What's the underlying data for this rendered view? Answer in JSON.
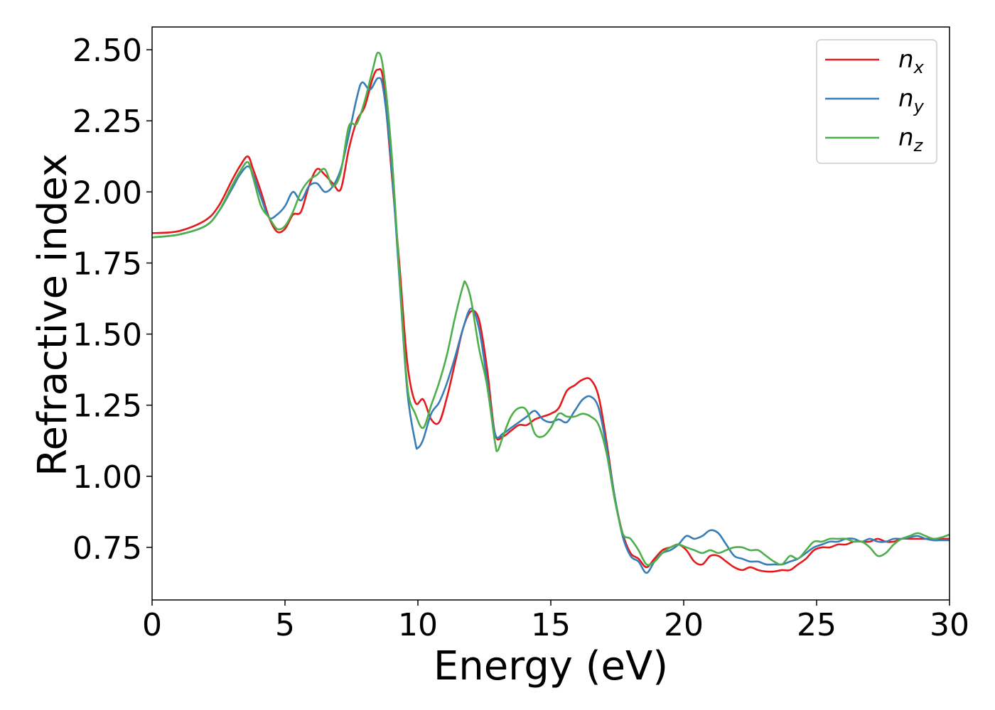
{
  "chart_data": {
    "type": "line",
    "xlabel": "Energy (eV)",
    "ylabel": "Refractive index",
    "xlim": [
      0,
      30
    ],
    "ylim": [
      0.565,
      2.58
    ],
    "xticks": [
      "0",
      "5",
      "10",
      "15",
      "20",
      "25",
      "30"
    ],
    "yticks": [
      "0.75",
      "1.00",
      "1.25",
      "1.50",
      "1.75",
      "2.00",
      "2.25",
      "2.50"
    ],
    "grid": false,
    "legend_position": "top-right",
    "series": [
      {
        "name": "n",
        "subscript": "x",
        "color": "#e41a1c",
        "x": [
          0,
          1,
          2,
          2.5,
          3,
          3.3,
          3.6,
          3.8,
          4.1,
          4.4,
          4.7,
          5.0,
          5.3,
          5.6,
          5.9,
          6.2,
          6.5,
          6.8,
          7.1,
          7.4,
          7.7,
          8.0,
          8.3,
          8.5,
          8.7,
          9.0,
          9.3,
          9.6,
          9.9,
          10.2,
          10.5,
          10.8,
          11.1,
          11.4,
          11.7,
          12.0,
          12.3,
          12.6,
          12.9,
          13.2,
          13.5,
          13.8,
          14.1,
          14.4,
          14.7,
          15.0,
          15.3,
          15.6,
          15.9,
          16.2,
          16.5,
          16.8,
          17.1,
          17.4,
          17.7,
          18.0,
          18.3,
          18.6,
          18.9,
          19.2,
          19.5,
          19.8,
          20.1,
          20.4,
          20.7,
          21.0,
          21.3,
          21.6,
          21.9,
          22.2,
          22.5,
          22.8,
          23.1,
          23.4,
          23.7,
          24.0,
          24.3,
          24.6,
          24.9,
          25.2,
          25.5,
          25.8,
          26.1,
          26.4,
          26.7,
          27.0,
          27.3,
          27.6,
          27.9,
          28.2,
          28.5,
          28.8,
          29.1,
          29.4,
          29.7,
          30.0
        ],
        "y": [
          1.855,
          1.862,
          1.9,
          1.95,
          2.04,
          2.09,
          2.125,
          2.08,
          2.0,
          1.91,
          1.86,
          1.87,
          1.92,
          1.93,
          2.02,
          2.08,
          2.06,
          2.03,
          2.01,
          2.15,
          2.25,
          2.3,
          2.4,
          2.43,
          2.39,
          2.08,
          1.75,
          1.4,
          1.26,
          1.27,
          1.2,
          1.19,
          1.28,
          1.4,
          1.52,
          1.58,
          1.55,
          1.38,
          1.15,
          1.14,
          1.16,
          1.18,
          1.18,
          1.2,
          1.21,
          1.22,
          1.24,
          1.3,
          1.32,
          1.34,
          1.34,
          1.28,
          1.12,
          0.93,
          0.8,
          0.73,
          0.71,
          0.68,
          0.71,
          0.74,
          0.75,
          0.76,
          0.74,
          0.7,
          0.69,
          0.72,
          0.72,
          0.7,
          0.68,
          0.67,
          0.68,
          0.67,
          0.665,
          0.665,
          0.67,
          0.67,
          0.69,
          0.71,
          0.74,
          0.75,
          0.75,
          0.76,
          0.76,
          0.77,
          0.77,
          0.77,
          0.78,
          0.77,
          0.77,
          0.78,
          0.78,
          0.78,
          0.78,
          0.78,
          0.78,
          0.78
        ]
      },
      {
        "name": "n",
        "subscript": "y",
        "color": "#377eb8",
        "x": [
          0,
          1,
          2,
          2.5,
          3,
          3.3,
          3.6,
          3.8,
          4.1,
          4.4,
          4.7,
          5.0,
          5.3,
          5.6,
          5.9,
          6.2,
          6.5,
          6.8,
          7.1,
          7.4,
          7.7,
          7.9,
          8.2,
          8.5,
          8.7,
          9.0,
          9.3,
          9.6,
          9.9,
          10.0,
          10.2,
          10.5,
          10.8,
          11.1,
          11.4,
          11.7,
          12.0,
          12.3,
          12.6,
          12.9,
          13.2,
          13.5,
          13.8,
          14.1,
          14.4,
          14.7,
          15.0,
          15.3,
          15.6,
          15.9,
          16.2,
          16.5,
          16.8,
          17.1,
          17.4,
          17.7,
          18.0,
          18.3,
          18.6,
          18.9,
          19.2,
          19.5,
          19.8,
          20.1,
          20.4,
          20.7,
          21.0,
          21.3,
          21.6,
          21.9,
          22.2,
          22.5,
          22.8,
          23.1,
          23.4,
          23.7,
          24.0,
          24.3,
          24.6,
          24.9,
          25.2,
          25.5,
          25.8,
          26.1,
          26.4,
          26.7,
          27.0,
          27.3,
          27.6,
          27.9,
          28.2,
          28.5,
          28.8,
          29.1,
          29.4,
          29.7,
          30.0
        ],
        "y": [
          1.84,
          1.85,
          1.88,
          1.93,
          2.01,
          2.06,
          2.09,
          2.06,
          1.98,
          1.91,
          1.92,
          1.95,
          2.0,
          1.97,
          2.02,
          2.03,
          2.0,
          2.02,
          2.08,
          2.2,
          2.33,
          2.385,
          2.36,
          2.4,
          2.36,
          2.1,
          1.7,
          1.3,
          1.12,
          1.1,
          1.13,
          1.22,
          1.26,
          1.33,
          1.42,
          1.52,
          1.59,
          1.52,
          1.34,
          1.15,
          1.15,
          1.17,
          1.19,
          1.21,
          1.23,
          1.2,
          1.19,
          1.2,
          1.19,
          1.23,
          1.27,
          1.28,
          1.24,
          1.1,
          0.93,
          0.79,
          0.72,
          0.7,
          0.66,
          0.7,
          0.73,
          0.74,
          0.76,
          0.79,
          0.78,
          0.79,
          0.81,
          0.8,
          0.76,
          0.72,
          0.71,
          0.7,
          0.7,
          0.69,
          0.69,
          0.69,
          0.7,
          0.71,
          0.73,
          0.75,
          0.76,
          0.77,
          0.77,
          0.78,
          0.78,
          0.77,
          0.78,
          0.77,
          0.77,
          0.78,
          0.78,
          0.785,
          0.79,
          0.78,
          0.775,
          0.775,
          0.775
        ]
      },
      {
        "name": "n",
        "subscript": "z",
        "color": "#4daf4a",
        "x": [
          0,
          1,
          2,
          2.5,
          3,
          3.3,
          3.6,
          3.8,
          4.1,
          4.4,
          4.7,
          5.0,
          5.3,
          5.6,
          5.9,
          6.2,
          6.5,
          6.8,
          7.1,
          7.4,
          7.7,
          8.0,
          8.3,
          8.5,
          8.7,
          9.0,
          9.3,
          9.6,
          9.9,
          10.2,
          10.5,
          10.8,
          11.1,
          11.4,
          11.7,
          11.8,
          12.0,
          12.3,
          12.6,
          12.9,
          13.0,
          13.2,
          13.5,
          13.8,
          14.1,
          14.4,
          14.7,
          15.0,
          15.3,
          15.6,
          15.9,
          16.2,
          16.5,
          16.8,
          17.1,
          17.4,
          17.7,
          18.0,
          18.3,
          18.6,
          18.9,
          19.2,
          19.5,
          19.8,
          20.1,
          20.4,
          20.7,
          21.0,
          21.3,
          21.6,
          21.9,
          22.2,
          22.5,
          22.8,
          23.1,
          23.4,
          23.7,
          24.0,
          24.3,
          24.6,
          24.9,
          25.2,
          25.5,
          25.8,
          26.1,
          26.4,
          26.7,
          27.0,
          27.3,
          27.6,
          27.9,
          28.2,
          28.5,
          28.8,
          29.1,
          29.4,
          29.7,
          30.0
        ],
        "y": [
          1.84,
          1.85,
          1.88,
          1.93,
          2.02,
          2.07,
          2.105,
          2.05,
          1.95,
          1.91,
          1.87,
          1.88,
          1.93,
          2.0,
          2.04,
          2.06,
          2.08,
          2.02,
          2.07,
          2.23,
          2.24,
          2.32,
          2.43,
          2.49,
          2.43,
          2.15,
          1.72,
          1.32,
          1.22,
          1.17,
          1.25,
          1.33,
          1.43,
          1.56,
          1.67,
          1.68,
          1.62,
          1.45,
          1.32,
          1.12,
          1.09,
          1.14,
          1.21,
          1.24,
          1.23,
          1.15,
          1.14,
          1.17,
          1.22,
          1.21,
          1.21,
          1.22,
          1.21,
          1.18,
          1.08,
          0.92,
          0.8,
          0.78,
          0.74,
          0.69,
          0.7,
          0.73,
          0.75,
          0.76,
          0.75,
          0.74,
          0.73,
          0.74,
          0.73,
          0.74,
          0.75,
          0.75,
          0.74,
          0.74,
          0.72,
          0.7,
          0.69,
          0.72,
          0.71,
          0.74,
          0.77,
          0.77,
          0.78,
          0.78,
          0.78,
          0.77,
          0.77,
          0.75,
          0.72,
          0.73,
          0.76,
          0.78,
          0.79,
          0.8,
          0.79,
          0.78,
          0.785,
          0.795
        ]
      }
    ]
  }
}
